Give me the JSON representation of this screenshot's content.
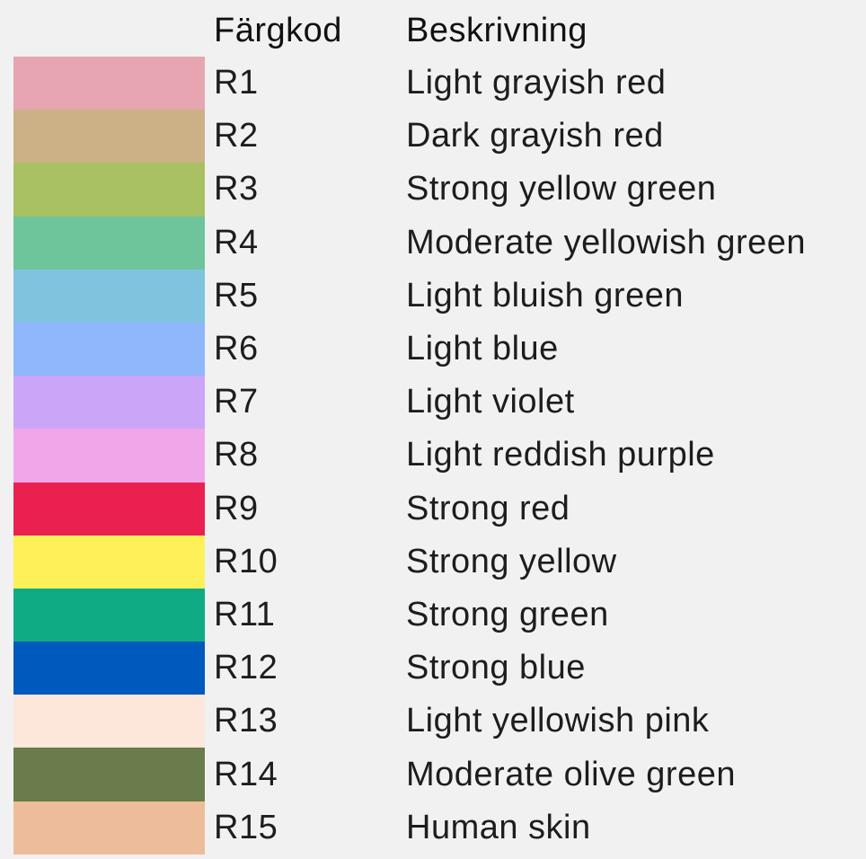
{
  "page": {
    "background_color": "#f1f1f2",
    "text_color": "#1d1d1d"
  },
  "table": {
    "headers": {
      "code": "Färgkod",
      "description": "Beskrivning"
    },
    "rows": [
      {
        "code": "R1",
        "description": "Light grayish red",
        "color": "#e7a5b2"
      },
      {
        "code": "R2",
        "description": "Dark grayish red",
        "color": "#ccb187"
      },
      {
        "code": "R3",
        "description": "Strong yellow green",
        "color": "#a9c163"
      },
      {
        "code": "R4",
        "description": "Moderate yellowish green",
        "color": "#6ec49b"
      },
      {
        "code": "R5",
        "description": "Light bluish green",
        "color": "#80c3de"
      },
      {
        "code": "R6",
        "description": "Light blue",
        "color": "#90b6fb"
      },
      {
        "code": "R7",
        "description": "Light violet",
        "color": "#cba5f8"
      },
      {
        "code": "R8",
        "description": "Light reddish purple",
        "color": "#f0a7e9"
      },
      {
        "code": "R9",
        "description": "Strong red",
        "color": "#ea2150"
      },
      {
        "code": "R10",
        "description": "Strong yellow",
        "color": "#fdf059"
      },
      {
        "code": "R11",
        "description": "Strong green",
        "color": "#0fab85"
      },
      {
        "code": "R12",
        "description": "Strong blue",
        "color": "#0059bc"
      },
      {
        "code": "R13",
        "description": "Light yellowish pink",
        "color": "#fde6da"
      },
      {
        "code": "R14",
        "description": "Moderate olive green",
        "color": "#6b7c4c"
      },
      {
        "code": "R15",
        "description": "Human skin",
        "color": "#edbc9a"
      }
    ]
  }
}
